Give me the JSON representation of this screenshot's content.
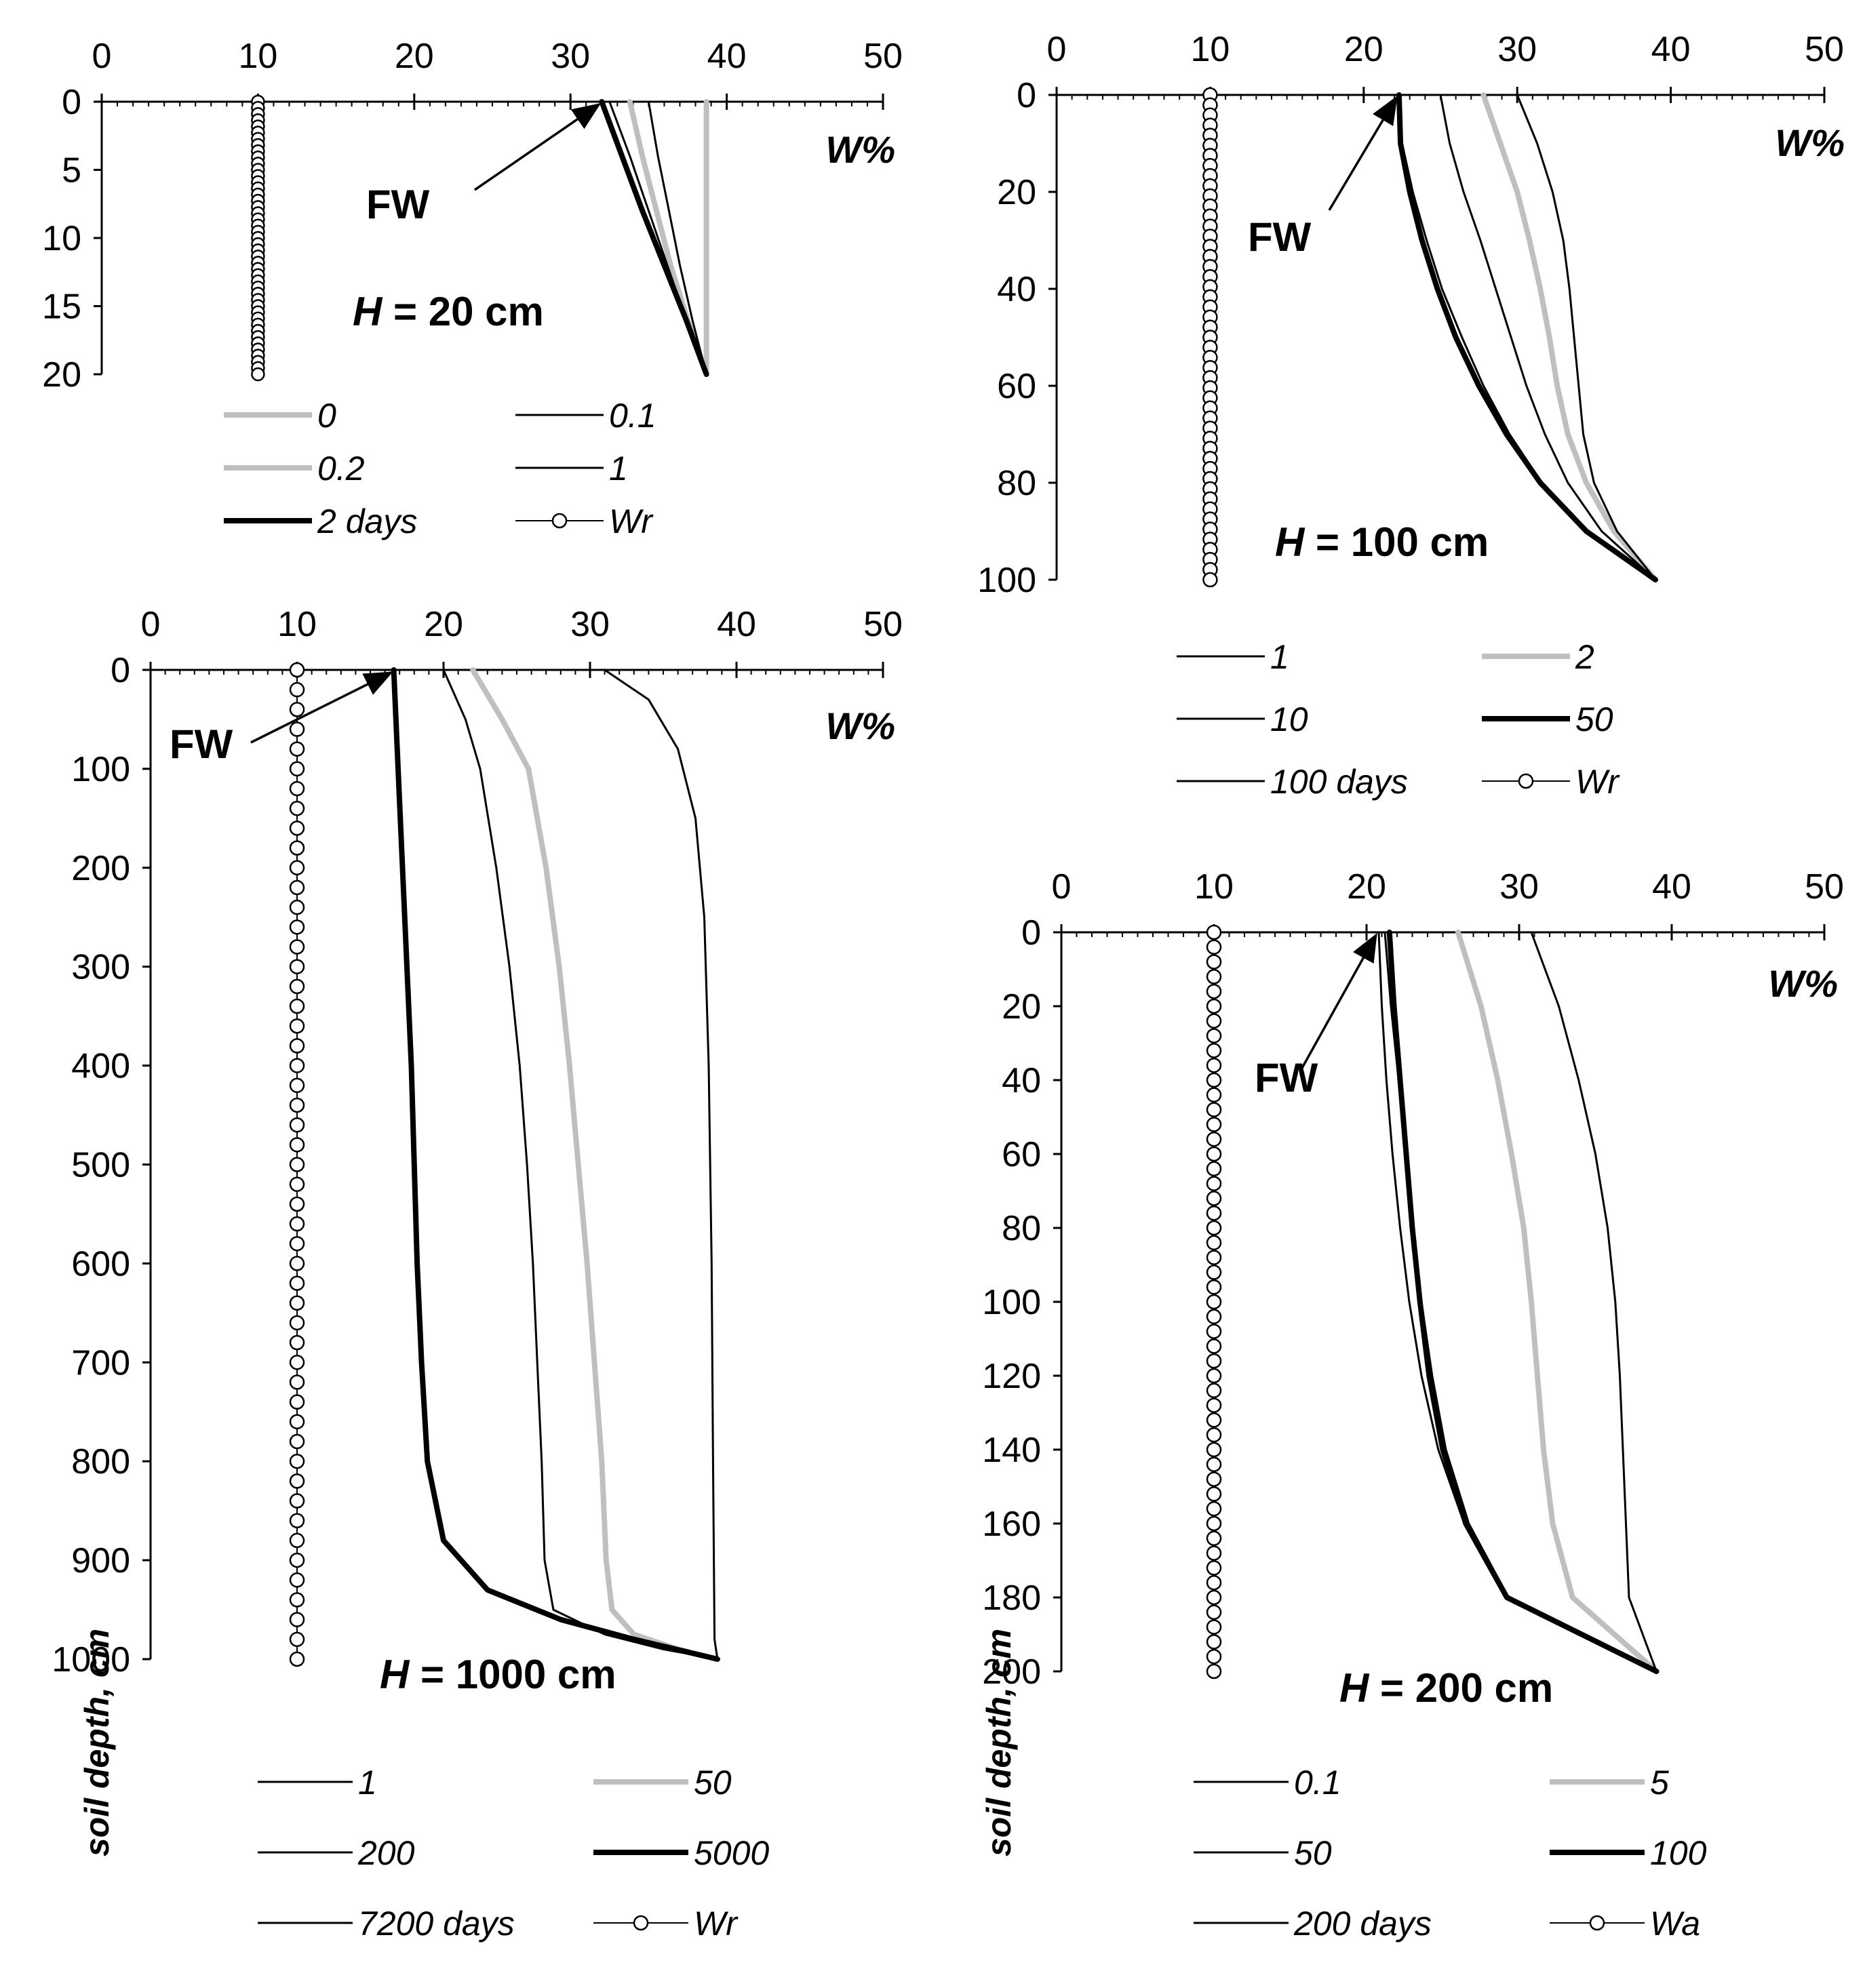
{
  "chart_data": [
    {
      "type": "line",
      "panel_label": "H = 20 cm",
      "h_italic": "H",
      "h_rest": " = 20 cm",
      "xlabel": "W%",
      "ylabel": "",
      "xlim": [
        0,
        50
      ],
      "ylim": [
        0,
        20
      ],
      "x_ticks": [
        "0",
        "10",
        "20",
        "30",
        "40",
        "50"
      ],
      "y_ticks": [
        "0",
        "5",
        "10",
        "15",
        "20"
      ],
      "fw_label": "FW",
      "fw_point": [
        32,
        0
      ],
      "series": [
        {
          "name": "0",
          "style": "gray",
          "points": [
            [
              38.7,
              0
            ],
            [
              38.7,
              20
            ]
          ]
        },
        {
          "name": "0.1",
          "style": "thin",
          "points": [
            [
              35,
              0
            ],
            [
              35.6,
              4
            ],
            [
              36.3,
              8
            ],
            [
              37,
              12
            ],
            [
              37.8,
              16
            ],
            [
              38.7,
              20
            ]
          ]
        },
        {
          "name": "0.2",
          "style": "gray",
          "points": [
            [
              33.8,
              0
            ],
            [
              34.6,
              4
            ],
            [
              35.5,
              8
            ],
            [
              36.4,
              12
            ],
            [
              37.5,
              16
            ],
            [
              38.7,
              20
            ]
          ]
        },
        {
          "name": "1",
          "style": "thin",
          "points": [
            [
              32.5,
              0
            ],
            [
              33.8,
              4
            ],
            [
              35,
              8
            ],
            [
              36.2,
              12
            ],
            [
              37.4,
              16
            ],
            [
              38.7,
              20
            ]
          ]
        },
        {
          "name": "2 days",
          "style": "thick",
          "points": [
            [
              32,
              0
            ],
            [
              33.3,
              4
            ],
            [
              34.6,
              8
            ],
            [
              36,
              12
            ],
            [
              37.4,
              16
            ],
            [
              38.7,
              20
            ]
          ]
        },
        {
          "name": "Wr",
          "style": "marker",
          "points": [
            [
              10,
              0
            ],
            [
              10,
              20
            ]
          ]
        }
      ],
      "legend": [
        "0",
        "0.1",
        "0.2",
        "1",
        "2 days",
        "Wr"
      ]
    },
    {
      "type": "line",
      "panel_label": "H = 100 cm",
      "h_italic": "H",
      "h_rest": " = 100 cm",
      "xlabel": "W%",
      "ylabel": "",
      "xlim": [
        0,
        50
      ],
      "ylim": [
        0,
        100
      ],
      "x_ticks": [
        "0",
        "10",
        "20",
        "30",
        "40",
        "50"
      ],
      "y_ticks": [
        "0",
        "20",
        "40",
        "60",
        "80",
        "100"
      ],
      "fw_label": "FW",
      "fw_point": [
        22.3,
        0
      ],
      "series": [
        {
          "name": "1",
          "style": "thin",
          "points": [
            [
              22.3,
              0
            ],
            [
              22.5,
              10
            ],
            [
              23.2,
              20
            ],
            [
              24.1,
              30
            ],
            [
              25.1,
              40
            ],
            [
              26.4,
              50
            ],
            [
              27.8,
              60
            ],
            [
              29.5,
              70
            ],
            [
              31.6,
              80
            ],
            [
              34.6,
              90
            ],
            [
              39,
              100
            ]
          ]
        },
        {
          "name": "2",
          "style": "gray",
          "points": [
            [
              27.8,
              0
            ],
            [
              28.9,
              10
            ],
            [
              30,
              20
            ],
            [
              30.8,
              30
            ],
            [
              31.5,
              40
            ],
            [
              32.1,
              50
            ],
            [
              32.6,
              60
            ],
            [
              33.3,
              70
            ],
            [
              34.5,
              80
            ],
            [
              36.3,
              90
            ],
            [
              39,
              100
            ]
          ]
        },
        {
          "name": "10",
          "style": "thin",
          "points": [
            [
              25,
              0
            ],
            [
              25.6,
              10
            ],
            [
              26.5,
              20
            ],
            [
              27.6,
              30
            ],
            [
              28.6,
              40
            ],
            [
              29.6,
              50
            ],
            [
              30.6,
              60
            ],
            [
              31.8,
              70
            ],
            [
              33.3,
              80
            ],
            [
              35.5,
              90
            ],
            [
              39,
              100
            ]
          ]
        },
        {
          "name": "50",
          "style": "thick",
          "points": [
            [
              22.3,
              0
            ],
            [
              22.4,
              10
            ],
            [
              23,
              20
            ],
            [
              23.8,
              30
            ],
            [
              24.8,
              40
            ],
            [
              26,
              50
            ],
            [
              27.5,
              60
            ],
            [
              29.3,
              70
            ],
            [
              31.5,
              80
            ],
            [
              34.5,
              90
            ],
            [
              39,
              100
            ]
          ]
        },
        {
          "name": "100 days",
          "style": "thin",
          "points": [
            [
              30,
              0
            ],
            [
              31.3,
              10
            ],
            [
              32.3,
              20
            ],
            [
              33,
              30
            ],
            [
              33.4,
              40
            ],
            [
              33.7,
              50
            ],
            [
              34,
              60
            ],
            [
              34.3,
              70
            ],
            [
              35,
              80
            ],
            [
              36.5,
              90
            ],
            [
              39,
              100
            ]
          ]
        },
        {
          "name": "Wr",
          "style": "marker",
          "points": [
            [
              10,
              0
            ],
            [
              10,
              100
            ]
          ]
        }
      ],
      "legend": [
        "1",
        "2",
        "10",
        "50",
        "100 days",
        "Wr"
      ]
    },
    {
      "type": "line",
      "panel_label": "H = 1000 cm",
      "h_italic": "H",
      "h_rest": " = 1000 cm",
      "xlabel": "W%",
      "ylabel": "soil depth, cm",
      "xlim": [
        0,
        50
      ],
      "ylim": [
        0,
        1000
      ],
      "x_ticks": [
        "0",
        "10",
        "20",
        "30",
        "40",
        "50"
      ],
      "y_ticks": [
        "0",
        "100",
        "200",
        "300",
        "400",
        "500",
        "600",
        "700",
        "800",
        "900",
        "1000"
      ],
      "fw_label": "FW",
      "fw_point": [
        16.6,
        0
      ],
      "series": [
        {
          "name": "1",
          "style": "thin",
          "points": [
            [
              16.6,
              0
            ],
            [
              16.9,
              100
            ],
            [
              17.2,
              200
            ],
            [
              17.5,
              300
            ],
            [
              17.8,
              400
            ],
            [
              18,
              500
            ],
            [
              18.2,
              600
            ],
            [
              18.5,
              700
            ],
            [
              18.9,
              800
            ],
            [
              20,
              880
            ],
            [
              23,
              930
            ],
            [
              28,
              960
            ],
            [
              33,
              980
            ],
            [
              38.7,
              1000
            ]
          ]
        },
        {
          "name": "50",
          "style": "gray",
          "points": [
            [
              22,
              0
            ],
            [
              24,
              50
            ],
            [
              25.8,
              100
            ],
            [
              27,
              200
            ],
            [
              27.9,
              300
            ],
            [
              28.6,
              400
            ],
            [
              29.2,
              500
            ],
            [
              29.8,
              600
            ],
            [
              30.3,
              700
            ],
            [
              30.8,
              800
            ],
            [
              31.1,
              900
            ],
            [
              31.5,
              950
            ],
            [
              33,
              975
            ],
            [
              36,
              990
            ],
            [
              38.7,
              1000
            ]
          ]
        },
        {
          "name": "200",
          "style": "thin",
          "points": [
            [
              20,
              0
            ],
            [
              21.5,
              50
            ],
            [
              22.5,
              100
            ],
            [
              23.6,
              200
            ],
            [
              24.5,
              300
            ],
            [
              25.2,
              400
            ],
            [
              25.7,
              500
            ],
            [
              26.1,
              600
            ],
            [
              26.4,
              700
            ],
            [
              26.7,
              800
            ],
            [
              26.9,
              900
            ],
            [
              27.5,
              950
            ],
            [
              31,
              975
            ],
            [
              35,
              990
            ],
            [
              38.7,
              1000
            ]
          ]
        },
        {
          "name": "5000",
          "style": "thick",
          "points": [
            [
              16.6,
              0
            ],
            [
              16.9,
              100
            ],
            [
              17.2,
              200
            ],
            [
              17.5,
              300
            ],
            [
              17.8,
              400
            ],
            [
              18,
              500
            ],
            [
              18.2,
              600
            ],
            [
              18.5,
              700
            ],
            [
              18.9,
              800
            ],
            [
              20,
              880
            ],
            [
              23,
              930
            ],
            [
              28,
              960
            ],
            [
              33,
              980
            ],
            [
              38.7,
              1000
            ]
          ]
        },
        {
          "name": "7200 days",
          "style": "thin",
          "points": [
            [
              31,
              0
            ],
            [
              34,
              30
            ],
            [
              36,
              80
            ],
            [
              37.2,
              150
            ],
            [
              37.8,
              250
            ],
            [
              38.1,
              400
            ],
            [
              38.3,
              600
            ],
            [
              38.4,
              800
            ],
            [
              38.5,
              980
            ],
            [
              38.7,
              1000
            ]
          ]
        },
        {
          "name": "Wr",
          "style": "marker",
          "points": [
            [
              10,
              0
            ],
            [
              10,
              1000
            ]
          ]
        }
      ],
      "legend": [
        "1",
        "50",
        "200",
        "5000",
        "7200 days",
        "Wr"
      ]
    },
    {
      "type": "line",
      "panel_label": "H = 200 cm",
      "h_italic": "H",
      "h_rest": " = 200 cm",
      "xlabel": "W%",
      "ylabel": "soil depth, cm",
      "xlim": [
        0,
        50
      ],
      "ylim": [
        0,
        200
      ],
      "x_ticks": [
        "0",
        "10",
        "20",
        "30",
        "40",
        "50"
      ],
      "y_ticks": [
        "0",
        "20",
        "40",
        "60",
        "80",
        "100",
        "120",
        "140",
        "160",
        "180",
        "200"
      ],
      "fw_label": "FW",
      "fw_point": [
        20.8,
        0
      ],
      "series": [
        {
          "name": "0.1",
          "style": "thin",
          "points": [
            [
              20.8,
              0
            ],
            [
              21,
              20
            ],
            [
              21.3,
              40
            ],
            [
              21.7,
              60
            ],
            [
              22.2,
              80
            ],
            [
              22.8,
              100
            ],
            [
              23.6,
              120
            ],
            [
              24.7,
              140
            ],
            [
              26.4,
              160
            ],
            [
              29.1,
              180
            ],
            [
              39,
              200
            ]
          ]
        },
        {
          "name": "5",
          "style": "gray",
          "points": [
            [
              26,
              0
            ],
            [
              27.5,
              20
            ],
            [
              28.6,
              40
            ],
            [
              29.5,
              60
            ],
            [
              30.3,
              80
            ],
            [
              30.8,
              100
            ],
            [
              31.2,
              120
            ],
            [
              31.6,
              140
            ],
            [
              32.2,
              160
            ],
            [
              33.5,
              180
            ],
            [
              39,
              200
            ]
          ]
        },
        {
          "name": "50",
          "style": "thin",
          "points": [
            [
              21.2,
              0
            ],
            [
              21.6,
              20
            ],
            [
              22.1,
              40
            ],
            [
              22.6,
              60
            ],
            [
              23.1,
              80
            ],
            [
              23.6,
              100
            ],
            [
              24.3,
              120
            ],
            [
              25.2,
              140
            ],
            [
              26.7,
              160
            ],
            [
              29.3,
              180
            ],
            [
              39,
              200
            ]
          ]
        },
        {
          "name": "100",
          "style": "thick",
          "points": [
            [
              21.5,
              0
            ],
            [
              21.8,
              20
            ],
            [
              22.2,
              40
            ],
            [
              22.6,
              60
            ],
            [
              23,
              80
            ],
            [
              23.5,
              100
            ],
            [
              24.1,
              120
            ],
            [
              25,
              140
            ],
            [
              26.5,
              160
            ],
            [
              29.2,
              180
            ],
            [
              39,
              200
            ]
          ]
        },
        {
          "name": "200 days",
          "style": "thin",
          "points": [
            [
              30.8,
              0
            ],
            [
              32.6,
              20
            ],
            [
              33.9,
              40
            ],
            [
              35,
              60
            ],
            [
              35.8,
              80
            ],
            [
              36.3,
              100
            ],
            [
              36.6,
              120
            ],
            [
              36.8,
              140
            ],
            [
              37,
              160
            ],
            [
              37.2,
              180
            ],
            [
              39,
              200
            ]
          ]
        },
        {
          "name": "Wa",
          "style": "marker",
          "points": [
            [
              10,
              0
            ],
            [
              10,
              200
            ]
          ]
        }
      ],
      "legend": [
        "0.1",
        "5",
        "50",
        "100",
        "200 days",
        "Wa"
      ]
    }
  ]
}
